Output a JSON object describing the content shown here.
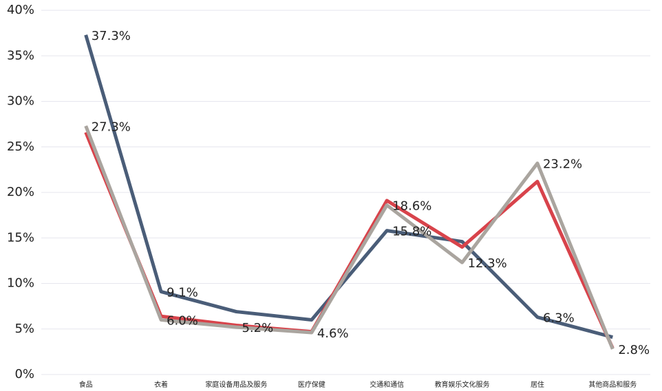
{
  "chart_data": {
    "type": "line",
    "categories": [
      "食品",
      "衣着",
      "家庭设备用品及服务",
      "医疗保健",
      "交通和通信",
      "教育娱乐文化服务",
      "居住",
      "其他商品和服务"
    ],
    "series": [
      {
        "color": "#4a5d78",
        "values": [
          37.3,
          9.1,
          6.9,
          6.0,
          15.8,
          14.6,
          6.3,
          4.1
        ],
        "value_labels": [
          "37.3%",
          "9.1%",
          null,
          null,
          "15.8%",
          null,
          "6.3%",
          null
        ]
      },
      {
        "color": "#d8434b",
        "values": [
          26.6,
          6.4,
          5.4,
          4.7,
          19.1,
          14.0,
          21.2,
          2.9
        ],
        "value_labels": [
          null,
          null,
          null,
          null,
          null,
          null,
          null,
          null
        ]
      },
      {
        "color": "#aaa59f",
        "values": [
          27.3,
          6.0,
          5.2,
          4.6,
          18.6,
          12.3,
          23.2,
          2.8
        ],
        "value_labels": [
          "27.3%",
          "6.0%",
          "5.2%",
          "4.6%",
          "18.6%",
          "12.3%",
          "23.2%",
          "2.8%"
        ]
      }
    ],
    "ylim": [
      0,
      40
    ],
    "yticks": [
      {
        "value": 0,
        "label": "0%"
      },
      {
        "value": 5,
        "label": "5%"
      },
      {
        "value": 10,
        "label": "10%"
      },
      {
        "value": 15,
        "label": "15%"
      },
      {
        "value": 20,
        "label": "20%"
      },
      {
        "value": 25,
        "label": "25%"
      },
      {
        "value": 30,
        "label": "30%"
      },
      {
        "value": 35,
        "label": "35%"
      },
      {
        "value": 40,
        "label": "40%"
      }
    ],
    "grid": true
  }
}
